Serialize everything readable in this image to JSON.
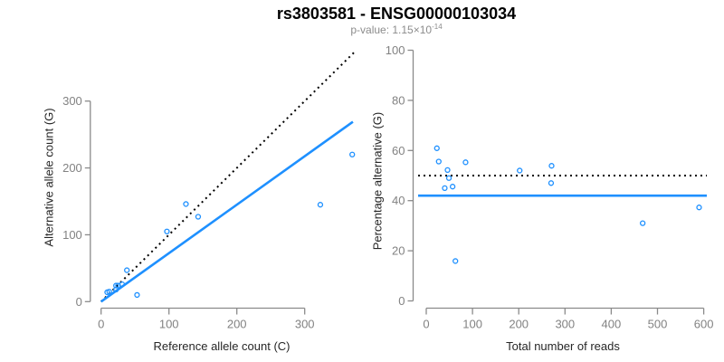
{
  "header": {
    "title": "rs3803581 - ENSG00000103034",
    "subtitle_prefix": "p-value: 1.15×10",
    "subtitle_exponent": "-14"
  },
  "colors": {
    "accent_blue": "#1E90FF",
    "line_black": "#000000",
    "axis_gray": "#8a8a8a",
    "tick_label_gray": "#828282",
    "subtitle_gray": "#8c8c8c"
  },
  "chart_data": [
    {
      "type": "scatter",
      "panel": "left",
      "xlabel": "Reference allele count (C)",
      "ylabel": "Alternative allele count (G)",
      "x_ticks": [
        0,
        100,
        200,
        300
      ],
      "y_ticks": [
        0,
        100,
        200,
        300
      ],
      "xlim": [
        0,
        375
      ],
      "ylim": [
        0,
        375
      ],
      "grid": false,
      "points": [
        [
          9,
          14
        ],
        [
          12,
          15
        ],
        [
          22,
          18
        ],
        [
          22,
          24
        ],
        [
          25,
          24
        ],
        [
          31,
          26
        ],
        [
          38,
          47
        ],
        [
          53,
          10
        ],
        [
          97,
          105
        ],
        [
          125,
          146
        ],
        [
          143,
          127
        ],
        [
          323,
          145
        ],
        [
          370,
          220
        ]
      ],
      "lines": [
        {
          "name": "identity-line",
          "style": "dotted",
          "color": "#000000",
          "x1": 0,
          "y1": 0,
          "x2": 373,
          "y2": 373
        },
        {
          "name": "fit-line",
          "style": "solid",
          "color": "#1E90FF",
          "x1": 0,
          "y1": 0,
          "x2": 371,
          "y2": 269
        }
      ]
    },
    {
      "type": "scatter",
      "panel": "right",
      "xlabel": "Total number of reads",
      "ylabel": "Percentage alternative (G)",
      "x_ticks": [
        0,
        100,
        200,
        300,
        400,
        500,
        600
      ],
      "y_ticks": [
        0,
        20,
        40,
        60,
        80,
        100
      ],
      "xlim": [
        0,
        610
      ],
      "ylim": [
        0,
        100
      ],
      "grid": false,
      "points": [
        [
          23,
          60.9
        ],
        [
          27,
          55.6
        ],
        [
          40,
          45.0
        ],
        [
          46,
          52.2
        ],
        [
          49,
          49.0
        ],
        [
          57,
          45.6
        ],
        [
          63,
          15.9
        ],
        [
          85,
          55.3
        ],
        [
          202,
          52.0
        ],
        [
          270,
          47.0
        ],
        [
          271,
          53.9
        ],
        [
          468,
          31.0
        ],
        [
          590,
          37.3
        ]
      ],
      "lines": [
        {
          "name": "expected-50pct-line",
          "style": "dotted",
          "color": "#000000",
          "y": 50
        },
        {
          "name": "mean-alt-pct-line",
          "style": "solid",
          "color": "#1E90FF",
          "y": 42
        }
      ]
    }
  ]
}
